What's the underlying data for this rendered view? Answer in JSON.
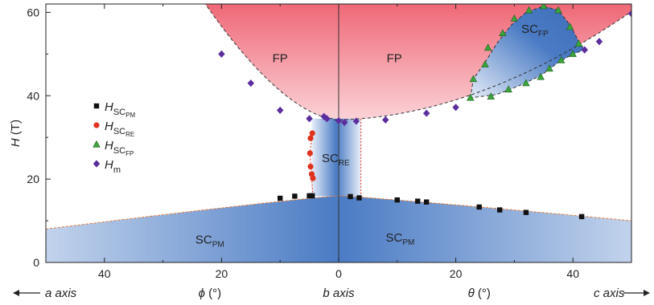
{
  "chart_data": {
    "type": "scatter",
    "ylabel": "H (T)",
    "ylabel_main": "H",
    "ylabel_unit": " (T)",
    "ylim": [
      0,
      62
    ],
    "yticks": [
      "0",
      "20",
      "40",
      "60"
    ],
    "x_ticks": [
      "40",
      "20",
      "0",
      "20",
      "40"
    ],
    "x_tick_values": [
      -40,
      -20,
      0,
      20,
      40
    ],
    "xlim": [
      -50,
      50
    ],
    "x_left_label": "← a axis",
    "x_left_main": "a axis",
    "x_center_label": "b axis",
    "x_right_label": "c axis ⟶",
    "x_right_main": "c axis",
    "phi_label": "ϕ (°)",
    "phi_symbol": "ϕ",
    "theta_label": "θ (°)",
    "theta_symbol": "θ",
    "unit_deg": " (°)",
    "regions": {
      "fp_left": "FP",
      "fp_right": "FP",
      "sc_fp": {
        "main": "SC",
        "sub": "FP"
      },
      "sc_re": {
        "main": "SC",
        "sub": "RE"
      },
      "sc_pm_left": {
        "main": "SC",
        "sub": "PM"
      },
      "sc_pm_right": {
        "main": "SC",
        "sub": "PM"
      }
    },
    "legend": [
      {
        "main": "H",
        "sub": "SC",
        "subsub": "PM",
        "marker": "square",
        "color": "#111111"
      },
      {
        "main": "H",
        "sub": "SC",
        "subsub": "RE",
        "marker": "circle",
        "color": "#e0321e"
      },
      {
        "main": "H",
        "sub": "SC",
        "subsub": "FP",
        "marker": "triangle",
        "color": "#3aa63a"
      },
      {
        "main": "H",
        "sub": "m",
        "subsub": "",
        "marker": "diamond",
        "color": "#5b2d9e"
      }
    ],
    "colors": {
      "sc_blue": "#4a7bc4",
      "sc_light": "#c9d8ee",
      "fp_red": "#ef6675",
      "fp_light": "#f9c5cb",
      "axis": "#222222"
    },
    "series": [
      {
        "name": "H_SC_PM",
        "marker": "square",
        "points": [
          [
            -10,
            15.4
          ],
          [
            -7.5,
            15.9
          ],
          [
            -5,
            16.0
          ],
          [
            -4.5,
            16.0
          ],
          [
            2,
            15.8
          ],
          [
            3.5,
            15.5
          ],
          [
            10,
            15.0
          ],
          [
            13.5,
            14.7
          ],
          [
            15,
            14.5
          ],
          [
            24,
            13.3
          ],
          [
            27.5,
            12.6
          ],
          [
            32,
            12.0
          ],
          [
            41.5,
            11.0
          ]
        ]
      },
      {
        "name": "H_SC_RE",
        "marker": "circle",
        "points": [
          [
            -4.5,
            31.0
          ],
          [
            -4.8,
            29.8
          ],
          [
            -4.9,
            26.2
          ],
          [
            -4.8,
            23.0
          ],
          [
            -4.6,
            21.2
          ],
          [
            -4.4,
            20.2
          ]
        ]
      },
      {
        "name": "H_SC_FP",
        "marker": "triangle",
        "points": [
          [
            22.5,
            39.5
          ],
          [
            23,
            44.0
          ],
          [
            25,
            47.5
          ],
          [
            25.5,
            51.5
          ],
          [
            28,
            55.0
          ],
          [
            30,
            58.5
          ],
          [
            32.5,
            60.5
          ],
          [
            35,
            61.5
          ],
          [
            37.5,
            60.5
          ],
          [
            39.5,
            56.5
          ],
          [
            41,
            52.5
          ],
          [
            26,
            39.8
          ],
          [
            29,
            41.5
          ],
          [
            32,
            43.0
          ],
          [
            34.5,
            44.5
          ],
          [
            36,
            46.5
          ],
          [
            38,
            48.5
          ],
          [
            40,
            50.0
          ]
        ]
      },
      {
        "name": "H_m",
        "marker": "diamond",
        "points": [
          [
            -20,
            50.0
          ],
          [
            -15,
            43.0
          ],
          [
            -10,
            36.5
          ],
          [
            -5,
            34.5
          ],
          [
            -2.5,
            35.0
          ],
          [
            -2,
            34.5
          ],
          [
            0,
            34.0
          ],
          [
            1,
            33.6
          ],
          [
            3,
            33.9
          ],
          [
            8,
            34.2
          ],
          [
            15,
            35.8
          ],
          [
            20,
            37.2
          ],
          [
            42,
            51.0
          ],
          [
            44.5,
            53.0
          ],
          [
            50,
            59.7
          ]
        ]
      }
    ]
  }
}
